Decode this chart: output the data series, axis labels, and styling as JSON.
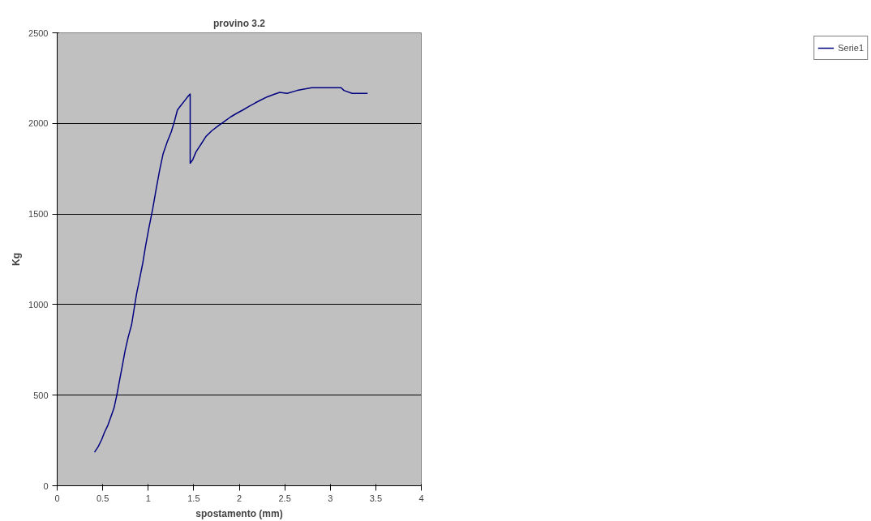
{
  "chart_data": {
    "type": "line",
    "title": "provino 3.2",
    "xlabel": "spostamento (mm)",
    "ylabel": "Kg",
    "xlim": [
      0,
      4
    ],
    "xticks": [
      0,
      0.5,
      1,
      1.5,
      2,
      2.5,
      3,
      3.5,
      4
    ],
    "ylim": [
      0,
      2500
    ],
    "yticks": [
      0,
      500,
      1000,
      1500,
      2000,
      2500
    ],
    "grid": "y",
    "legend": "right",
    "marker": "none",
    "line_style": "solid",
    "series": [
      {
        "name": "Serie1",
        "color": "#000080",
        "x": [
          0.41,
          0.45,
          0.49,
          0.52,
          0.557,
          0.59,
          0.625,
          0.655,
          0.683,
          0.715,
          0.746,
          0.78,
          0.818,
          0.845,
          0.872,
          0.905,
          0.94,
          0.97,
          1.007,
          1.05,
          1.088,
          1.125,
          1.164,
          1.21,
          1.254,
          1.29,
          1.321,
          1.36,
          1.4,
          1.43,
          1.461,
          1.461,
          1.49,
          1.524,
          1.58,
          1.636,
          1.7,
          1.771,
          1.84,
          1.906,
          1.97,
          2.04,
          2.11,
          2.175,
          2.24,
          2.31,
          2.38,
          2.445,
          2.526,
          2.638,
          2.796,
          2.95,
          3.119,
          3.15,
          3.24,
          3.33,
          3.41
        ],
        "values": [
          185,
          215,
          256,
          295,
          334,
          380,
          430,
          500,
          575,
          660,
          745,
          820,
          890,
          975,
          1059,
          1140,
          1228,
          1320,
          1422,
          1530,
          1640,
          1740,
          1833,
          1900,
          1954,
          2015,
          2074,
          2100,
          2125,
          2145,
          2162,
          1780,
          1800,
          1842,
          1885,
          1929,
          1960,
          1987,
          2012,
          2036,
          2055,
          2074,
          2095,
          2113,
          2130,
          2147,
          2160,
          2171,
          2166,
          2182,
          2197,
          2197,
          2197,
          2182,
          2166,
          2166,
          2166
        ]
      }
    ]
  }
}
